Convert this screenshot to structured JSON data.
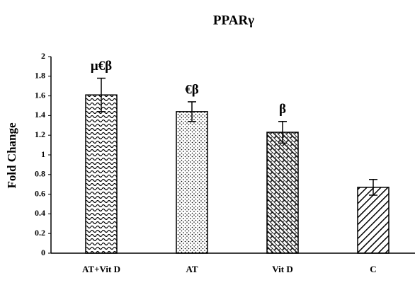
{
  "chart_data": {
    "type": "bar",
    "title": "PPARγ",
    "y_label": "Fold Change",
    "categories": [
      "AT+Vit D",
      "AT",
      "Vit D",
      "C"
    ],
    "values": [
      1.61,
      1.44,
      1.23,
      0.67
    ],
    "errors": [
      0.17,
      0.1,
      0.11,
      0.08
    ],
    "bar_labels": [
      "μ€β",
      "€β",
      "β",
      null
    ],
    "color": "#000000",
    "ylim": [
      0,
      2
    ],
    "yticks": [
      0,
      0.2,
      0.4,
      0.6,
      0.8,
      1,
      1.2,
      1.4,
      1.6,
      1.8,
      2
    ],
    "grid": false
  }
}
